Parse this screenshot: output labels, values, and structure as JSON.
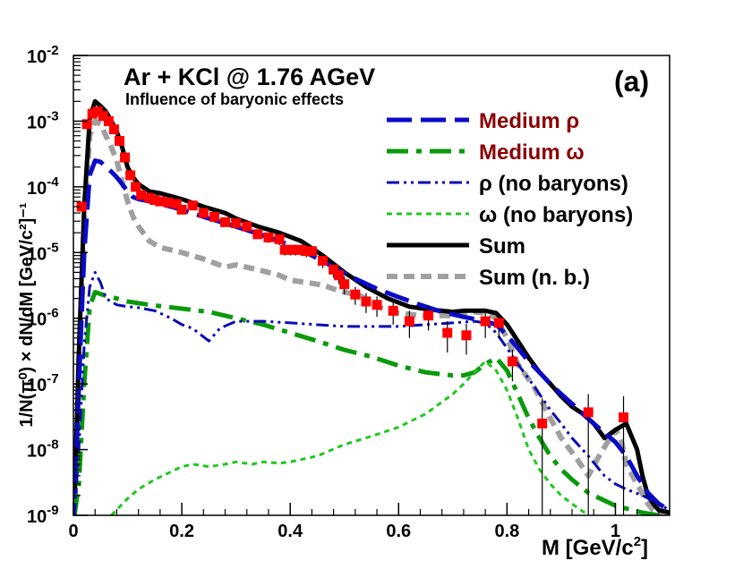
{
  "chart_data": {
    "type": "line",
    "title": "Ar + KCl @ 1.76 AGeV",
    "subtitle": "Influence of baryonic effects",
    "panel_label": "(a)",
    "xlabel": "M  [GeV/c",
    "xlabel_sup": "2",
    "xlabel_close": "]",
    "ylabel": "1/N(π⁰) × dN/dM  [GeV/c²]⁻¹",
    "xlim": [
      0,
      1.1
    ],
    "ylim_log10": [
      -9,
      -2
    ],
    "x_ticks": [
      0,
      0.2,
      0.4,
      0.6,
      0.8,
      1
    ],
    "x_tick_labels": [
      "0",
      "0.2",
      "0.4",
      "0.6",
      "0.8",
      "1"
    ],
    "y_ticks_log10": [
      -9,
      -8,
      -7,
      -6,
      -5,
      -4,
      -3,
      -2
    ],
    "y_tick_labels": [
      {
        "base": "10",
        "exp": "-9"
      },
      {
        "base": "10",
        "exp": "-8"
      },
      {
        "base": "10",
        "exp": "-7"
      },
      {
        "base": "10",
        "exp": "-6"
      },
      {
        "base": "10",
        "exp": "-5"
      },
      {
        "base": "10",
        "exp": "-4"
      },
      {
        "base": "10",
        "exp": "-3"
      },
      {
        "base": "10",
        "exp": "-2"
      }
    ],
    "series": [
      {
        "name": "Sum (n. b.)",
        "legend": "Sum (n. b.)",
        "color": "#a0a0a0",
        "style": "dashed",
        "x": [
          0.002,
          0.01,
          0.02,
          0.03,
          0.04,
          0.05,
          0.06,
          0.07,
          0.08,
          0.09,
          0.1,
          0.11,
          0.12,
          0.14,
          0.16,
          0.2,
          0.24,
          0.28,
          0.3,
          0.34,
          0.38,
          0.4,
          0.43,
          0.46,
          0.48,
          0.5,
          0.53,
          0.56,
          0.6,
          0.64,
          0.68,
          0.7,
          0.72,
          0.74,
          0.76,
          0.78,
          0.8,
          0.82,
          0.85,
          0.88,
          0.9,
          0.93,
          0.95,
          0.97,
          0.99,
          1.0,
          1.01,
          1.02,
          1.04,
          1.06,
          1.07,
          1.08,
          1.1
        ],
        "y": [
          1e-09,
          2e-07,
          3e-05,
          0.0006,
          0.001,
          0.0009,
          0.0006,
          0.0004,
          0.00025,
          0.00012,
          6e-05,
          3.5e-05,
          2.5e-05,
          1.5e-05,
          1.2e-05,
          1e-05,
          8e-06,
          6e-06,
          6.5e-06,
          5.5e-06,
          4.5e-06,
          3.8e-06,
          3.5e-06,
          3.2e-06,
          2.8e-06,
          2.5e-06,
          2.2e-06,
          1.5e-06,
          1.2e-06,
          1.1e-06,
          1.1e-06,
          1.1e-06,
          1.2e-06,
          1.25e-06,
          1.2e-06,
          1e-06,
          5e-07,
          2e-07,
          9e-08,
          3e-08,
          1.5e-08,
          7e-09,
          4e-09,
          8e-09,
          1.5e-08,
          2e-08,
          1.5e-08,
          6e-09,
          3e-09,
          1.5e-09,
          1.2e-09,
          1.1e-09,
          1e-09
        ]
      },
      {
        "name": "Sum",
        "legend": "Sum",
        "color": "#000000",
        "style": "solid",
        "x": [
          0.002,
          0.01,
          0.02,
          0.03,
          0.04,
          0.05,
          0.06,
          0.07,
          0.08,
          0.09,
          0.1,
          0.11,
          0.12,
          0.14,
          0.16,
          0.2,
          0.24,
          0.28,
          0.3,
          0.34,
          0.38,
          0.42,
          0.46,
          0.5,
          0.54,
          0.58,
          0.62,
          0.66,
          0.7,
          0.72,
          0.74,
          0.76,
          0.78,
          0.8,
          0.82,
          0.84,
          0.86,
          0.88,
          0.9,
          0.92,
          0.94,
          0.96,
          0.98,
          1.0,
          1.02,
          1.04,
          1.05,
          1.06,
          1.07,
          1.08,
          1.1
        ],
        "y": [
          1.5e-09,
          3e-07,
          5e-05,
          0.0011,
          0.002,
          0.0017,
          0.0014,
          0.001,
          0.0007,
          0.0004,
          0.0002,
          0.00014,
          0.00011,
          8.5e-05,
          8e-05,
          6.5e-05,
          5e-05,
          4e-05,
          3.3e-05,
          2.5e-05,
          2e-05,
          1.5e-05,
          9e-06,
          5e-06,
          3e-06,
          2e-06,
          1.5e-06,
          1.35e-06,
          1.25e-06,
          1.3e-06,
          1.3e-06,
          1.3e-06,
          1.2e-06,
          8e-07,
          4.5e-07,
          2.5e-07,
          1.5e-07,
          1e-07,
          6.5e-08,
          4.5e-08,
          3.5e-08,
          2.5e-08,
          1.5e-08,
          2e-08,
          2.5e-08,
          1e-08,
          4e-09,
          2e-09,
          1.5e-09,
          1.2e-09,
          1.1e-09
        ]
      },
      {
        "name": "Medium rho",
        "legend": "Medium ρ",
        "color": "#0a0ac8",
        "style": "longdash",
        "x": [
          0.002,
          0.01,
          0.02,
          0.03,
          0.04,
          0.05,
          0.06,
          0.07,
          0.08,
          0.09,
          0.1,
          0.11,
          0.12,
          0.14,
          0.16,
          0.2,
          0.24,
          0.28,
          0.32,
          0.36,
          0.4,
          0.44,
          0.48,
          0.52,
          0.56,
          0.6,
          0.64,
          0.68,
          0.72,
          0.76,
          0.78,
          0.8,
          0.82,
          0.84,
          0.86,
          0.88,
          0.9,
          0.92,
          0.94,
          0.96,
          0.98,
          1.0,
          1.02,
          1.04,
          1.06,
          1.08,
          1.1
        ],
        "y": [
          1e-09,
          1e-07,
          1e-05,
          0.00015,
          0.00025,
          0.00024,
          0.0002,
          0.00017,
          0.00014,
          0.00011,
          8.5e-05,
          7e-05,
          6.5e-05,
          6e-05,
          5.5e-05,
          4.5e-05,
          3.5e-05,
          2.8e-05,
          2.2e-05,
          1.7e-05,
          1.3e-05,
          9e-06,
          6e-06,
          4e-06,
          2.8e-06,
          2.1e-06,
          1.6e-06,
          1.25e-06,
          1.05e-06,
          9e-07,
          8e-07,
          5.5e-07,
          3.5e-07,
          2.2e-07,
          1.5e-07,
          1e-07,
          7e-08,
          5e-08,
          3.5e-08,
          2.5e-08,
          1.8e-08,
          1.3e-08,
          8e-09,
          4e-09,
          2.2e-09,
          1.5e-09,
          1.2e-09
        ]
      },
      {
        "name": "Medium omega",
        "legend": "Medium ω",
        "color": "#0a9a0a",
        "style": "dashdot",
        "x": [
          0.002,
          0.01,
          0.02,
          0.03,
          0.04,
          0.06,
          0.08,
          0.1,
          0.14,
          0.2,
          0.25,
          0.3,
          0.35,
          0.4,
          0.45,
          0.5,
          0.55,
          0.6,
          0.65,
          0.7,
          0.72,
          0.74,
          0.76,
          0.78,
          0.8,
          0.82,
          0.84,
          0.86,
          0.88,
          0.9,
          0.92,
          0.95,
          1.0,
          1.05,
          1.08
        ],
        "y": [
          1e-09,
          3e-09,
          1e-07,
          1.5e-06,
          2.5e-06,
          2.2e-06,
          2e-06,
          1.8e-06,
          1.6e-06,
          1.4e-06,
          1.25e-06,
          1e-06,
          8e-07,
          6e-07,
          4.5e-07,
          3.3e-07,
          2.6e-07,
          1.9e-07,
          1.5e-07,
          1.35e-07,
          1.35e-07,
          1.5e-07,
          2e-07,
          2.5e-07,
          1.6e-07,
          7e-08,
          3e-08,
          1.5e-08,
          8e-09,
          5e-09,
          3.5e-09,
          2.2e-09,
          1.4e-09,
          1.1e-09,
          1e-09
        ]
      },
      {
        "name": "rho (no baryons)",
        "legend": "ρ (no baryons)",
        "color": "#0a0ab4",
        "style": "dashdotdot",
        "x": [
          0.002,
          0.01,
          0.02,
          0.03,
          0.04,
          0.05,
          0.06,
          0.08,
          0.1,
          0.12,
          0.15,
          0.18,
          0.2,
          0.22,
          0.25,
          0.27,
          0.3,
          0.35,
          0.4,
          0.5,
          0.6,
          0.7,
          0.74,
          0.76,
          0.78,
          0.8,
          0.82,
          0.84,
          0.86,
          0.88,
          0.9,
          0.92,
          0.95,
          0.98,
          1.0,
          1.02,
          1.05,
          1.08,
          1.1
        ],
        "y": [
          1e-09,
          1e-08,
          4e-07,
          3e-06,
          5e-06,
          3.5e-06,
          2e-06,
          1.6e-06,
          1.5e-06,
          1.45e-06,
          1.3e-06,
          1e-06,
          8e-07,
          7e-07,
          4.5e-07,
          7e-07,
          9e-07,
          9e-07,
          8.5e-07,
          7.5e-07,
          7.5e-07,
          8.5e-07,
          9e-07,
          8.5e-07,
          6e-07,
          3.5e-07,
          2e-07,
          1.2e-07,
          7e-08,
          4e-08,
          2.5e-08,
          1.5e-08,
          8e-09,
          4e-09,
          3e-09,
          2.5e-09,
          2e-09,
          1.5e-09,
          1.2e-09
        ]
      },
      {
        "name": "omega (no baryons)",
        "legend": "ω (no baryons)",
        "color": "#1ec81e",
        "style": "dotted",
        "x": [
          0.07,
          0.1,
          0.12,
          0.15,
          0.2,
          0.22,
          0.25,
          0.28,
          0.3,
          0.33,
          0.35,
          0.38,
          0.4,
          0.45,
          0.5,
          0.55,
          0.6,
          0.65,
          0.7,
          0.72,
          0.74,
          0.76,
          0.78,
          0.8,
          0.82,
          0.84,
          0.86,
          0.88,
          0.9,
          0.92,
          0.95
        ],
        "y": [
          1e-09,
          1.8e-09,
          2.5e-09,
          3.5e-09,
          5.5e-09,
          6e-09,
          5.5e-09,
          6e-09,
          6.5e-09,
          6e-09,
          6.5e-09,
          6.2e-09,
          6.5e-09,
          8e-09,
          1.2e-08,
          1.6e-08,
          2.2e-08,
          3.5e-08,
          7e-08,
          1e-07,
          1.5e-07,
          2.2e-07,
          1.6e-07,
          8e-08,
          3e-08,
          1e-08,
          5e-09,
          3e-09,
          2e-09,
          1.5e-09,
          1e-09
        ]
      }
    ],
    "data_points": {
      "name": "Data",
      "color": "#ff0000",
      "x": [
        0.015,
        0.025,
        0.035,
        0.045,
        0.055,
        0.065,
        0.075,
        0.085,
        0.095,
        0.105,
        0.115,
        0.125,
        0.14,
        0.15,
        0.16,
        0.175,
        0.19,
        0.2,
        0.22,
        0.24,
        0.26,
        0.28,
        0.3,
        0.32,
        0.34,
        0.36,
        0.38,
        0.39,
        0.4,
        0.41,
        0.42,
        0.43,
        0.44,
        0.46,
        0.48,
        0.49,
        0.5,
        0.52,
        0.54,
        0.56,
        0.59,
        0.62,
        0.655,
        0.69,
        0.725,
        0.76,
        0.785,
        0.81,
        0.865,
        0.95,
        1.015
      ],
      "y": [
        5e-05,
        0.0009,
        0.0013,
        0.0014,
        0.0012,
        0.001,
        0.00075,
        0.0005,
        0.00028,
        0.00015,
        0.0001,
        7.5e-05,
        6.8e-05,
        6.3e-05,
        6e-05,
        5.8e-05,
        5.5e-05,
        4.5e-05,
        5.2e-05,
        4e-05,
        3.5e-05,
        2.9e-05,
        2.8e-05,
        2.5e-05,
        1.9e-05,
        1.7e-05,
        1.6e-05,
        1.1e-05,
        1.1e-05,
        1.1e-05,
        1.1e-05,
        1.05e-05,
        1.05e-05,
        7.5e-06,
        5.5e-06,
        4.5e-06,
        3.3e-06,
        2.3e-06,
        1.8e-06,
        1.6e-06,
        1.3e-06,
        9e-07,
        1.1e-06,
        6e-07,
        5.5e-07,
        9e-07,
        8.5e-07,
        2.2e-07,
        2.5e-08,
        3.7e-08,
        3.1e-08
      ],
      "y_low": [
        4.2e-05,
        0.00084,
        0.0012,
        0.0013,
        0.0011,
        0.00093,
        0.0007,
        0.00046,
        0.00026,
        0.00014,
        9.2e-05,
        6.9e-05,
        6.2e-05,
        5.7e-05,
        5.4e-05,
        5.2e-05,
        4.9e-05,
        4e-05,
        4.6e-05,
        3.5e-05,
        3.1e-05,
        2.5e-05,
        2.4e-05,
        2.1e-05,
        1.6e-05,
        1.4e-05,
        1.3e-05,
        9e-06,
        9e-06,
        9e-06,
        9e-06,
        8.5e-06,
        8.5e-06,
        5.8e-06,
        4.1e-06,
        3.3e-06,
        2.3e-06,
        1.6e-06,
        1.2e-06,
        1.05e-06,
        8e-07,
        5e-07,
        6.5e-07,
        3e-07,
        2.8e-07,
        5e-07,
        5e-07,
        1.1e-07,
        1e-09,
        1e-09,
        1e-09
      ],
      "y_high": [
        5.8e-05,
        0.00096,
        0.0014,
        0.0015,
        0.0013,
        0.00107,
        0.0008,
        0.00054,
        0.0003,
        0.00016,
        0.000108,
        8.1e-05,
        7.4e-05,
        6.9e-05,
        6.6e-05,
        6.4e-05,
        6.1e-05,
        5e-05,
        5.8e-05,
        4.5e-05,
        3.9e-05,
        3.3e-05,
        3.2e-05,
        2.9e-05,
        2.2e-05,
        2e-05,
        1.9e-05,
        1.3e-05,
        1.3e-05,
        1.3e-05,
        1.3e-05,
        1.25e-05,
        1.25e-05,
        9.2e-06,
        6.9e-06,
        5.7e-06,
        4.3e-06,
        3e-06,
        2.4e-06,
        2.15e-06,
        1.8e-06,
        1.3e-06,
        1.55e-06,
        9e-07,
        8.2e-07,
        1.3e-06,
        1.2e-06,
        3.3e-07,
        6e-08,
        7e-08,
        6.5e-08
      ]
    }
  }
}
